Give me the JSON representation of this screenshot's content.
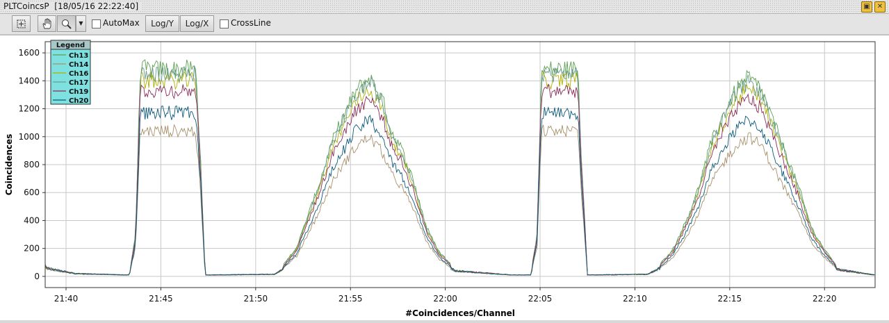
{
  "window": {
    "title": "PLTCoincsP  [18/05/16 22:22:40]"
  },
  "toolbar": {
    "automax_label": "AutoMax",
    "logy_label": "Log/Y",
    "logx_label": "Log/X",
    "crossline_label": "CrossLine"
  },
  "chart_data": {
    "type": "line",
    "title": "",
    "xlabel": "#Coincidences/Channel",
    "ylabel": "Coincidences",
    "ylim": [
      -80,
      1680
    ],
    "yticks": [
      0,
      200,
      400,
      600,
      800,
      1000,
      1200,
      1400,
      1600
    ],
    "xlim": [
      "21:38:54",
      "22:22:40"
    ],
    "xticks": [
      "21:40",
      "21:45",
      "21:50",
      "21:55",
      "22:00",
      "22:05",
      "22:10",
      "22:15",
      "22:20"
    ],
    "grid": true,
    "legend_title": "Legend",
    "legend_position": "top-left",
    "series": [
      {
        "name": "Ch13",
        "color": "#5aa050",
        "peak": 1480,
        "jitter": 70
      },
      {
        "name": "Ch14",
        "color": "#a8906a",
        "peak": 1040,
        "jitter": 45
      },
      {
        "name": "Ch16",
        "color": "#b0b000",
        "peak": 1400,
        "jitter": 60
      },
      {
        "name": "Ch17",
        "color": "#6a9a90",
        "peak": 1450,
        "jitter": 60
      },
      {
        "name": "Ch19",
        "color": "#8a2a5a",
        "peak": 1330,
        "jitter": 55
      },
      {
        "name": "Ch20",
        "color": "#0a5a7a",
        "peak": 1170,
        "jitter": 50
      }
    ],
    "points": [
      [
        "21:38:54",
        60
      ],
      [
        "21:39:40",
        40
      ],
      [
        "21:40:30",
        20
      ],
      [
        "21:43:20",
        10
      ],
      [
        "21:43:40",
        200
      ],
      [
        "21:43:55",
        1000
      ],
      [
        "21:44:10",
        1000
      ],
      [
        "21:46:50",
        1000
      ],
      [
        "21:47:05",
        600
      ],
      [
        "21:47:20",
        10
      ],
      [
        "21:51:00",
        15
      ],
      [
        "21:51:30",
        60
      ],
      [
        "21:52:10",
        140
      ],
      [
        "21:52:40",
        270
      ],
      [
        "21:53:20",
        440
      ],
      [
        "21:54:00",
        640
      ],
      [
        "21:54:40",
        780
      ],
      [
        "21:55:20",
        900
      ],
      [
        "21:56:00",
        960
      ],
      [
        "21:56:40",
        860
      ],
      [
        "21:57:10",
        700
      ],
      [
        "21:57:40",
        620
      ],
      [
        "21:58:20",
        460
      ],
      [
        "21:59:00",
        240
      ],
      [
        "21:59:40",
        120
      ],
      [
        "22:00:30",
        40
      ],
      [
        "22:03:30",
        10
      ],
      [
        "22:04:30",
        10
      ],
      [
        "22:04:50",
        200
      ],
      [
        "22:05:05",
        1000
      ],
      [
        "22:05:20",
        1000
      ],
      [
        "22:07:00",
        1000
      ],
      [
        "22:07:10",
        600
      ],
      [
        "22:07:30",
        10
      ],
      [
        "22:10:40",
        15
      ],
      [
        "22:11:20",
        60
      ],
      [
        "22:12:00",
        130
      ],
      [
        "22:12:40",
        260
      ],
      [
        "22:13:20",
        420
      ],
      [
        "22:14:00",
        640
      ],
      [
        "22:14:40",
        780
      ],
      [
        "22:15:20",
        900
      ],
      [
        "22:16:00",
        960
      ],
      [
        "22:16:40",
        900
      ],
      [
        "22:17:20",
        740
      ],
      [
        "22:18:00",
        580
      ],
      [
        "22:18:40",
        420
      ],
      [
        "22:19:20",
        230
      ],
      [
        "22:20:00",
        130
      ],
      [
        "22:20:40",
        50
      ],
      [
        "22:22:40",
        10
      ]
    ]
  }
}
